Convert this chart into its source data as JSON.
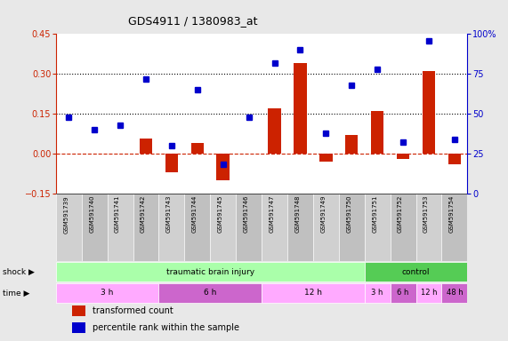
{
  "title": "GDS4911 / 1380983_at",
  "samples": [
    "GSM591739",
    "GSM591740",
    "GSM591741",
    "GSM591742",
    "GSM591743",
    "GSM591744",
    "GSM591745",
    "GSM591746",
    "GSM591747",
    "GSM591748",
    "GSM591749",
    "GSM591750",
    "GSM591751",
    "GSM591752",
    "GSM591753",
    "GSM591754"
  ],
  "red_bars": [
    0.0,
    0.0,
    0.0,
    0.055,
    -0.07,
    0.04,
    -0.1,
    0.0,
    0.17,
    0.34,
    -0.03,
    0.07,
    0.16,
    -0.02,
    0.31,
    -0.04
  ],
  "blue_dots_pct": [
    48,
    40,
    43,
    72,
    30,
    65,
    18,
    48,
    82,
    90,
    38,
    68,
    78,
    32,
    96,
    34
  ],
  "ylim_left": [
    -0.15,
    0.45
  ],
  "ylim_right": [
    0,
    100
  ],
  "yticks_left": [
    -0.15,
    0.0,
    0.15,
    0.3,
    0.45
  ],
  "yticks_right": [
    0,
    25,
    50,
    75,
    100
  ],
  "hlines": [
    0.15,
    0.3
  ],
  "bar_color": "#cc2200",
  "dot_color": "#0000cc",
  "bg_color": "#e8e8e8",
  "plot_bg": "#ffffff",
  "shock_groups": [
    {
      "label": "traumatic brain injury",
      "start": 0,
      "end": 11,
      "color": "#aaffaa"
    },
    {
      "label": "control",
      "start": 12,
      "end": 15,
      "color": "#55cc55"
    }
  ],
  "time_groups": [
    {
      "label": "3 h",
      "start": 0,
      "end": 3,
      "color": "#ffaaff"
    },
    {
      "label": "6 h",
      "start": 4,
      "end": 7,
      "color": "#cc66cc"
    },
    {
      "label": "12 h",
      "start": 8,
      "end": 11,
      "color": "#ffaaff"
    },
    {
      "label": "3 h",
      "start": 12,
      "end": 12,
      "color": "#ffaaff"
    },
    {
      "label": "6 h",
      "start": 13,
      "end": 13,
      "color": "#cc66cc"
    },
    {
      "label": "12 h",
      "start": 14,
      "end": 14,
      "color": "#ffaaff"
    },
    {
      "label": "48 h",
      "start": 15,
      "end": 15,
      "color": "#cc66cc"
    }
  ],
  "shock_label": "shock",
  "time_label": "time",
  "col_colors_even": "#d0d0d0",
  "col_colors_odd": "#c0c0c0",
  "legend": [
    {
      "color": "#cc2200",
      "label": "transformed count"
    },
    {
      "color": "#0000cc",
      "label": "percentile rank within the sample"
    }
  ]
}
